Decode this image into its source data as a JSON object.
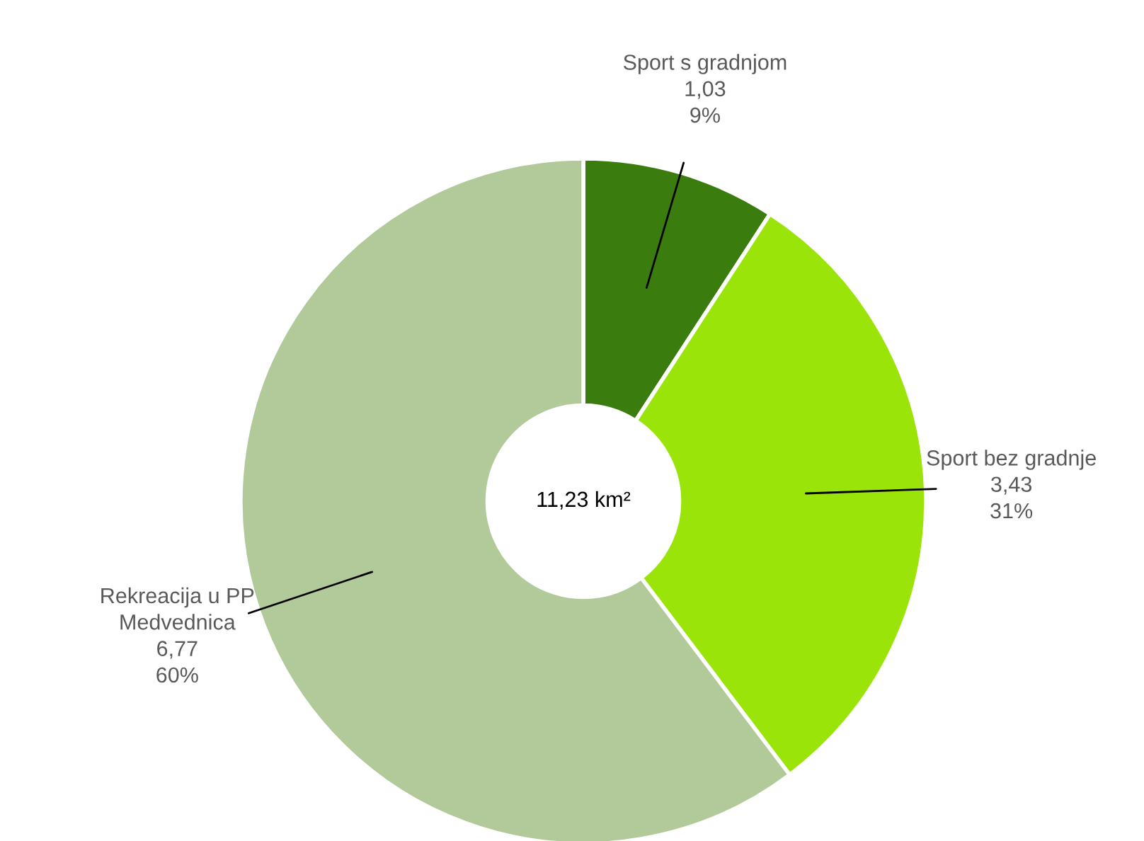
{
  "chart_data": {
    "type": "donut",
    "categories": [
      "Sport s gradnjom",
      "Sport bez gradnje",
      "Rekreacija u PP\nMedvednica"
    ],
    "values": [
      1.03,
      3.43,
      6.77
    ],
    "value_labels": [
      "1,03\n9%",
      "3,43\n31%",
      "6,77\n60%"
    ],
    "colors": [
      "#3a7d0e",
      "#9be40a",
      "#b2c99a"
    ],
    "annotations": [
      "11,23 km²"
    ]
  }
}
